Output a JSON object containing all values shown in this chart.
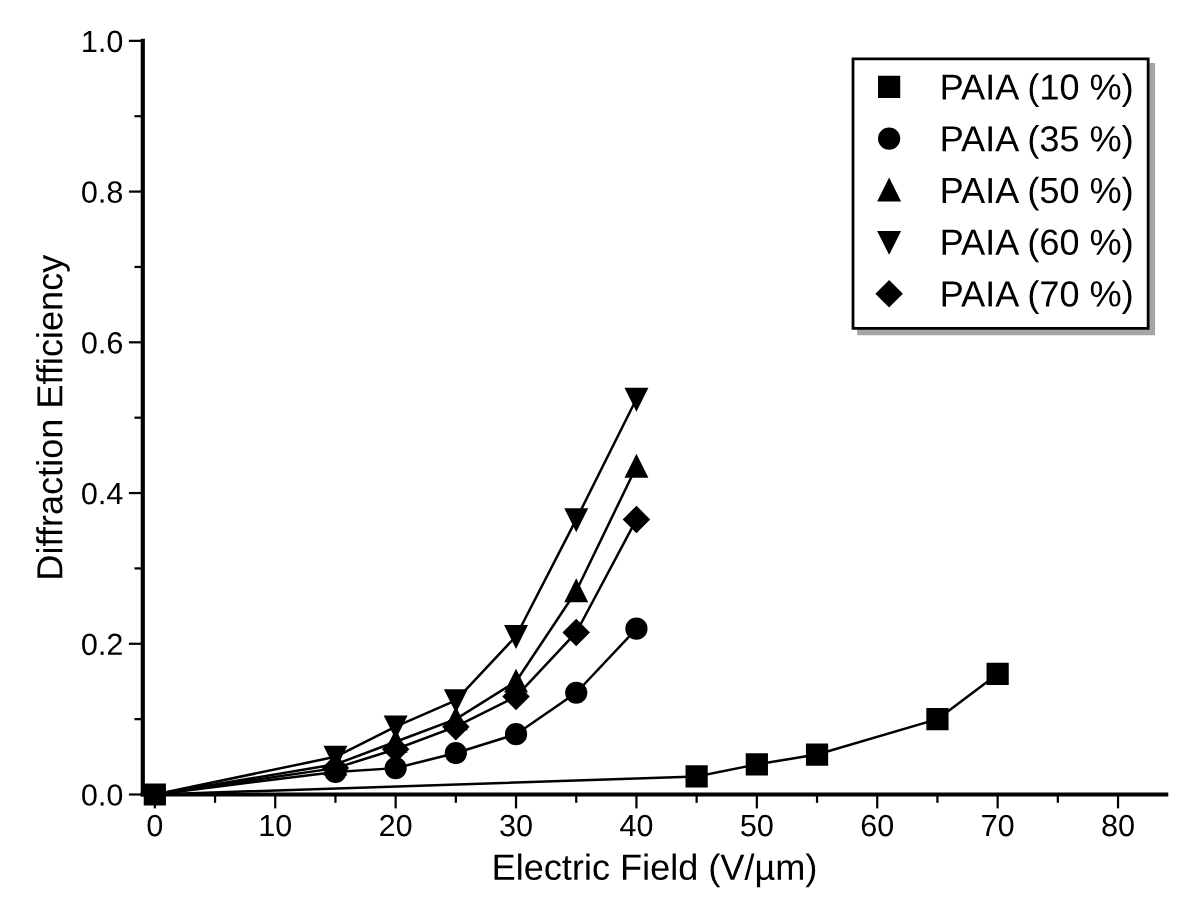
{
  "chart_data": {
    "type": "line",
    "xlabel": "Electric Field (V/µm)",
    "ylabel": "Diffraction Efficiency",
    "xlim": [
      -1,
      84
    ],
    "ylim": [
      0,
      1.0
    ],
    "xticks": [
      0,
      {
        "value": 5,
        "label": null
      },
      10,
      {
        "value": 15,
        "label": null
      },
      20,
      {
        "value": 25,
        "label": null
      },
      30,
      {
        "value": 35,
        "label": null
      },
      40,
      {
        "value": 45,
        "label": null
      },
      50,
      {
        "value": 55,
        "label": null
      },
      60,
      {
        "value": 65,
        "label": null
      },
      70,
      {
        "value": 75,
        "label": null
      },
      80
    ],
    "yticks": [
      {
        "value": 0,
        "label": "0.0"
      },
      {
        "value": 0.1,
        "label": null
      },
      0.2,
      {
        "value": 0.3,
        "label": null
      },
      0.4,
      {
        "value": 0.5,
        "label": null
      },
      0.6,
      {
        "value": 0.7,
        "label": null
      },
      0.8,
      {
        "value": 0.9,
        "label": null
      },
      {
        "value": 1,
        "label": "1.0"
      }
    ],
    "grid": false,
    "legend": "top right",
    "line_style": "solid",
    "series": [
      {
        "name": "PAIA (10 %)",
        "color": "#000000",
        "marker": "square",
        "x": [
          0,
          45,
          50,
          55,
          65,
          70
        ],
        "values": [
          0,
          0.024,
          0.04,
          0.053,
          0.1,
          0.16
        ]
      },
      {
        "name": "PAIA (35 %)",
        "color": "#000000",
        "marker": "circle",
        "x": [
          0,
          15,
          20,
          25,
          30,
          35,
          40
        ],
        "values": [
          0,
          0.03,
          0.035,
          0.055,
          0.08,
          0.135,
          0.22
        ]
      },
      {
        "name": "PAIA (50 %)",
        "color": "#000000",
        "marker": "triangle",
        "x": [
          0,
          15,
          20,
          25,
          30,
          35,
          40
        ],
        "values": [
          0,
          0.04,
          0.07,
          0.1,
          0.15,
          0.27,
          0.435
        ]
      },
      {
        "name": "PAIA (60 %)",
        "color": "#000000",
        "marker": "triangle_down",
        "x": [
          0,
          15,
          20,
          25,
          30,
          35,
          40
        ],
        "values": [
          0,
          0.05,
          0.09,
          0.125,
          0.21,
          0.365,
          0.525
        ]
      },
      {
        "name": "PAIA (70 %)",
        "color": "#000000",
        "marker": "diamond",
        "x": [
          0,
          15,
          20,
          25,
          30,
          35,
          40
        ],
        "values": [
          0,
          0.035,
          0.06,
          0.09,
          0.13,
          0.215,
          0.365
        ]
      }
    ]
  }
}
